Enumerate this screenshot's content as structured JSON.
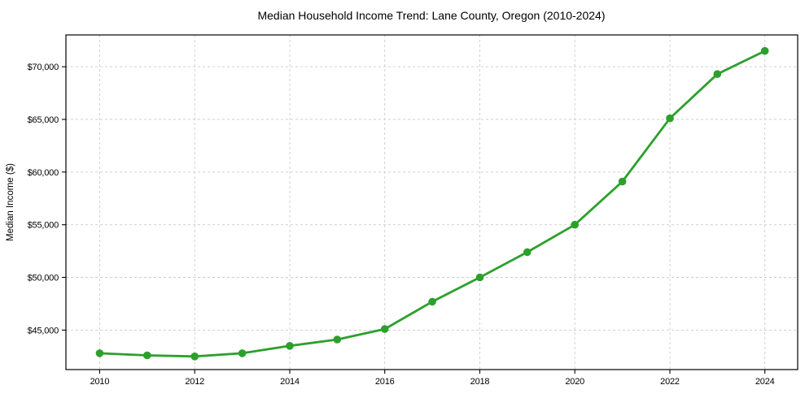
{
  "chart_data": {
    "type": "line",
    "title": "Median Household Income Trend: Lane County, Oregon (2010-2024)",
    "xlabel": "",
    "ylabel": "Median Income ($)",
    "x": [
      2010,
      2011,
      2012,
      2013,
      2014,
      2015,
      2016,
      2017,
      2018,
      2019,
      2020,
      2021,
      2022,
      2023,
      2024
    ],
    "series": [
      {
        "name": "Median Household Income",
        "values": [
          42800,
          42600,
          42500,
          42800,
          43500,
          44100,
          45100,
          47700,
          50000,
          52400,
          55000,
          59100,
          65100,
          69300,
          71500
        ]
      }
    ],
    "xlim": [
      2009.29,
      2024.69
    ],
    "ylim": [
      41250,
      73020
    ],
    "xticks": [
      2010,
      2012,
      2014,
      2016,
      2018,
      2020,
      2022,
      2024
    ],
    "xtick_labels": [
      "2010",
      "2012",
      "2014",
      "2016",
      "2018",
      "2020",
      "2022",
      "2024"
    ],
    "yticks": [
      45000,
      50000,
      55000,
      60000,
      65000,
      70000
    ],
    "ytick_labels": [
      "$45,000",
      "$50,000",
      "$55,000",
      "$60,000",
      "$65,000",
      "$70,000"
    ],
    "grid": true,
    "grid_style": "dashed",
    "legend": false,
    "marker": "circle",
    "colors": {
      "line": "#2ca02c",
      "grid": "#cccccc",
      "background": "#ffffff",
      "text": "#000000"
    }
  }
}
